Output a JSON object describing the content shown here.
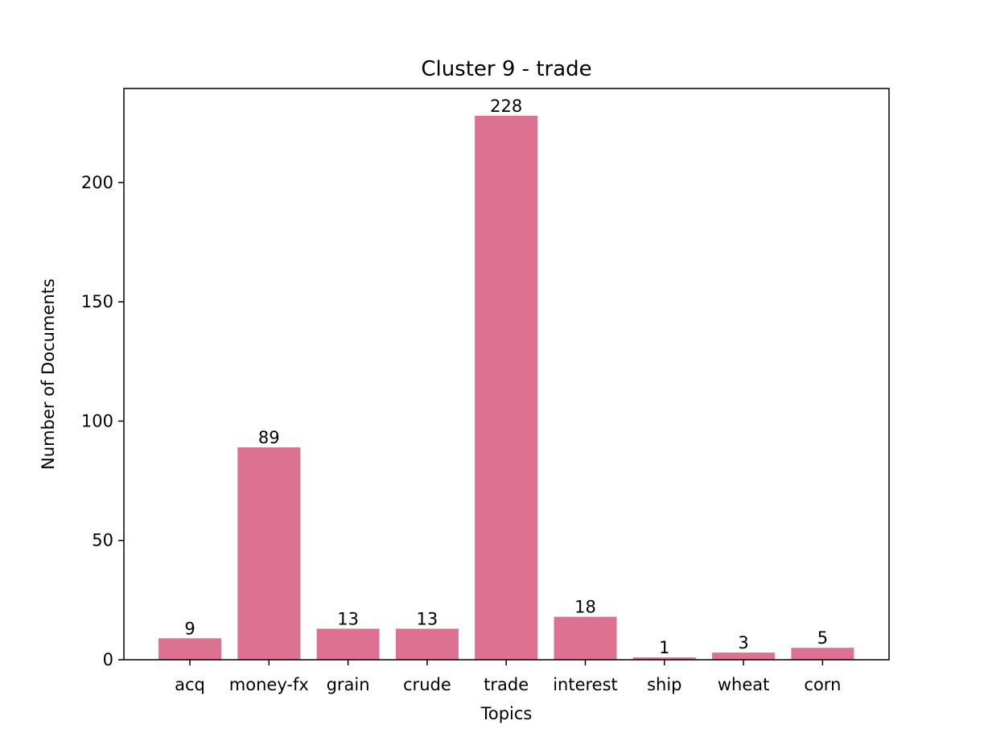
{
  "chart_data": {
    "type": "bar",
    "title": "Cluster 9 - trade",
    "xlabel": "Topics",
    "ylabel": "Number of Documents",
    "categories": [
      "acq",
      "money-fx",
      "grain",
      "crude",
      "trade",
      "interest",
      "ship",
      "wheat",
      "corn"
    ],
    "values": [
      9,
      89,
      13,
      13,
      228,
      18,
      1,
      3,
      5
    ],
    "data_labels": [
      "9",
      "89",
      "13",
      "13",
      "228",
      "18",
      "1",
      "3",
      "5"
    ],
    "yticks": [
      0,
      50,
      100,
      150,
      200
    ],
    "ytick_labels": [
      "0",
      "50",
      "100",
      "150",
      "200"
    ],
    "ylim": [
      0,
      239.4
    ],
    "grid": false,
    "bar_color": "#dc7192"
  }
}
